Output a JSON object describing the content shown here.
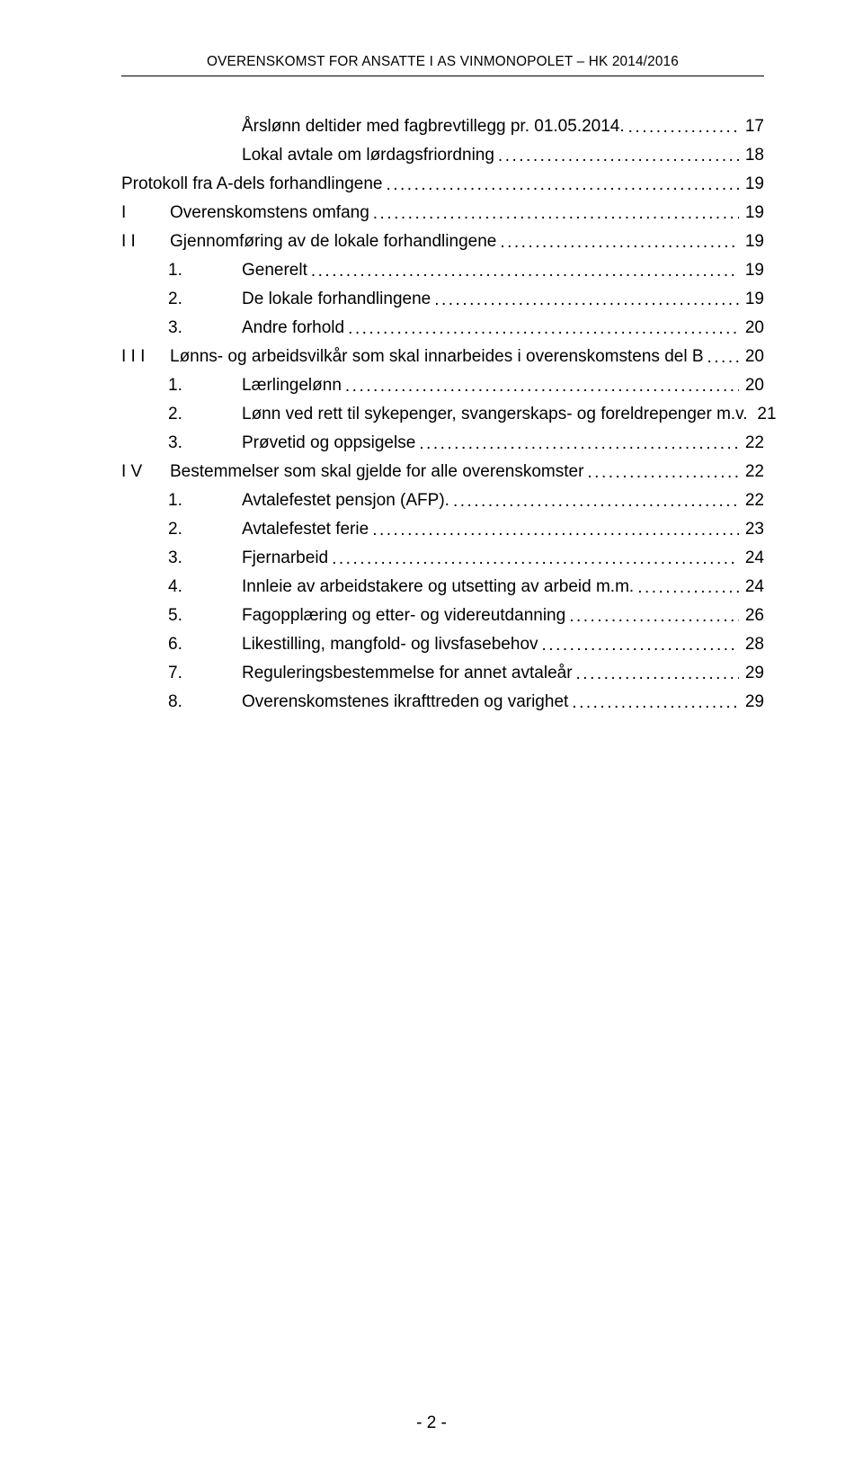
{
  "header": {
    "text_parts": [
      "O",
      "VERENSKOMST FOR ANSATTE I ",
      "AS V",
      "INMONOPOLET ",
      "– HK 2014/2016"
    ]
  },
  "toc": [
    {
      "level": 2,
      "prefix": "",
      "title": "Årslønn deltider med fagbrevtillegg pr. 01.05.2014.",
      "page": "17"
    },
    {
      "level": 2,
      "prefix": "",
      "title": "Lokal avtale om lørdagsfriordning",
      "page": "18"
    },
    {
      "level": 0,
      "prefix": "",
      "title": "Protokoll fra A-dels forhandlingene",
      "page": "19"
    },
    {
      "level": 1,
      "prefix": "I",
      "title": "Overenskomstens omfang",
      "page": "19"
    },
    {
      "level": 1,
      "prefix": "I I",
      "title": "Gjennomføring av de lokale forhandlingene",
      "page": "19"
    },
    {
      "level": 2,
      "prefix": "1.",
      "title": "Generelt",
      "page": "19"
    },
    {
      "level": 2,
      "prefix": "2.",
      "title": "De lokale forhandlingene",
      "page": "19"
    },
    {
      "level": 2,
      "prefix": "3.",
      "title": "Andre forhold",
      "page": "20"
    },
    {
      "level": 1,
      "prefix": "I I I",
      "title": "Lønns- og arbeidsvilkår som skal innarbeides i overenskomstens del B",
      "page": "20"
    },
    {
      "level": 2,
      "prefix": "1.",
      "title": "Lærlingelønn",
      "page": "20"
    },
    {
      "level": 2,
      "prefix": "2.",
      "title": "Lønn ved rett til sykepenger, svangerskaps- og foreldrepenger m.v.",
      "page": "21"
    },
    {
      "level": 2,
      "prefix": "3.",
      "title": "Prøvetid og oppsigelse",
      "page": "22"
    },
    {
      "level": 1,
      "prefix": "I V",
      "title": "Bestemmelser som skal gjelde for alle overenskomster",
      "page": "22"
    },
    {
      "level": 2,
      "prefix": "1.",
      "title": "Avtalefestet pensjon (AFP).",
      "page": "22"
    },
    {
      "level": 2,
      "prefix": "2.",
      "title": "Avtalefestet ferie",
      "page": "23"
    },
    {
      "level": 2,
      "prefix": "3.",
      "title": "Fjernarbeid",
      "page": "24"
    },
    {
      "level": 2,
      "prefix": "4.",
      "title": "Innleie av arbeidstakere og utsetting av arbeid m.m. ",
      "page": "24"
    },
    {
      "level": 2,
      "prefix": "5.",
      "title": "Fagopplæring og etter- og videreutdanning",
      "page": "26"
    },
    {
      "level": 2,
      "prefix": "6.",
      "title": "Likestilling, mangfold- og livsfasebehov",
      "page": "28"
    },
    {
      "level": 2,
      "prefix": "7.",
      "title": "Reguleringsbestemmelse for annet avtaleår",
      "page": "29"
    },
    {
      "level": 2,
      "prefix": "8.",
      "title": "Overenskomstenes ikrafttreden og varighet",
      "page": "29"
    }
  ],
  "footer": {
    "page_number": "- 2 -"
  }
}
